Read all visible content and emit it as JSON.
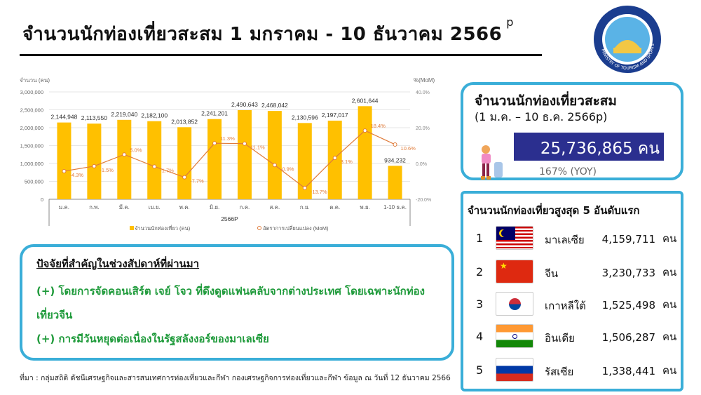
{
  "title": "จำนวนนักท่องเที่ยวสะสม 1 มกราคม - 10 ธันวาคม 2566",
  "title_sup": "p",
  "logo_text": "MINISTRY OF TOURISM AND SPORTS",
  "colors": {
    "bar": "#ffc000",
    "line": "#e07b39",
    "frame": "#3aaed8",
    "total_bg": "#2b2f8f",
    "factor_text": "#1e9a3a"
  },
  "chart_data": {
    "type": "bar+line",
    "ylabel": "จำนวน (คน)",
    "y2label": "%(MoM)",
    "xlabel": "2566P",
    "ylim": [
      0,
      3000000
    ],
    "y2lim": [
      -20,
      40
    ],
    "yticks": [
      "0",
      "500,000",
      "1,000,000",
      "1,500,000",
      "2,000,000",
      "2,500,000",
      "3,000,000"
    ],
    "y2ticks": [
      "-20.0%",
      "0.0%",
      "20.0%",
      "40.0%"
    ],
    "grid": true,
    "legend_position": "bottom",
    "categories": [
      "ม.ค.",
      "ก.พ.",
      "มี.ค.",
      "เม.ย.",
      "พ.ค.",
      "มิ.ย.",
      "ก.ค.",
      "ส.ค.",
      "ก.ย.",
      "ต.ค.",
      "พ.ย.",
      "1-10 ธ.ค."
    ],
    "series": [
      {
        "name": "จำนวนนักท่องเที่ยว (คน)",
        "type": "bar",
        "values": [
          2144948,
          2113550,
          2219040,
          2182100,
          2013852,
          2241201,
          2490643,
          2468042,
          2130596,
          2197017,
          2601644,
          934232
        ],
        "labels": [
          "2,144,948",
          "2,113,550",
          "2,219,040",
          "2,182,100",
          "2,013,852",
          "2,241,201",
          "2,490,643",
          "2,468,042",
          "2,130,596",
          "2,197,017",
          "2,601,644",
          "934,232"
        ]
      },
      {
        "name": "อัตราการเปลี่ยนแปลง (MoM)",
        "type": "line",
        "axis": "right",
        "values": [
          -4.3,
          -1.5,
          5.0,
          -1.7,
          -7.7,
          11.3,
          11.1,
          -0.9,
          -13.7,
          3.1,
          18.4,
          10.6
        ],
        "labels": [
          "-4.3%",
          "-1.5%",
          "5.0%",
          "-1.7%",
          "-7.7%",
          "11.3%",
          "11.1%",
          "-0.9%",
          "-13.7%",
          "3.1%",
          "18.4%",
          "10.6%"
        ]
      }
    ]
  },
  "factors": {
    "heading": "ปัจจัยที่สำคัญในช่วงสัปดาห์ที่ผ่านมา",
    "items": [
      "(+) โดยการจัดคอนเสิร์ต เจย์ โจว ที่ดึงดูดแฟนคลับจากต่างประเทศ โดยเฉพาะนักท่องเที่ยวจีน",
      "(+) การมีวันหยุดต่อเนื่องในรัฐสลังงอร์ของมาเลเซีย"
    ]
  },
  "source": "ที่มา : กลุ่มสถิติ ดัชนีเศรษฐกิจและสารสนเทศการท่องเที่ยวและกีฬา กองเศรษฐกิจการท่องเที่ยวและกีฬา ข้อมูล ณ วันที่ 12 ธันวาคม 2566",
  "cumulative": {
    "title": "จำนวนนักท่องเที่ยวสะสม",
    "period": "(1 ม.ค. – 10 ธ.ค. 2566p)",
    "total": "25,736,865 คน",
    "yoy": "167% (YOY)"
  },
  "top5": {
    "heading": "จำนวนนักท่องเที่ยวสูงสุด 5 อันดับแรก",
    "unit": "คน",
    "items": [
      {
        "rank": "1",
        "country": "มาเลเซีย",
        "value": "4,159,711",
        "flag": "malaysia-flag"
      },
      {
        "rank": "2",
        "country": "จีน",
        "value": "3,230,733",
        "flag": "china-flag"
      },
      {
        "rank": "3",
        "country": "เกาหลีใต้",
        "value": "1,525,498",
        "flag": "south-korea-flag"
      },
      {
        "rank": "4",
        "country": "อินเดีย",
        "value": "1,506,287",
        "flag": "india-flag"
      },
      {
        "rank": "5",
        "country": "รัสเซีย",
        "value": "1,338,441",
        "flag": "russia-flag"
      }
    ]
  }
}
